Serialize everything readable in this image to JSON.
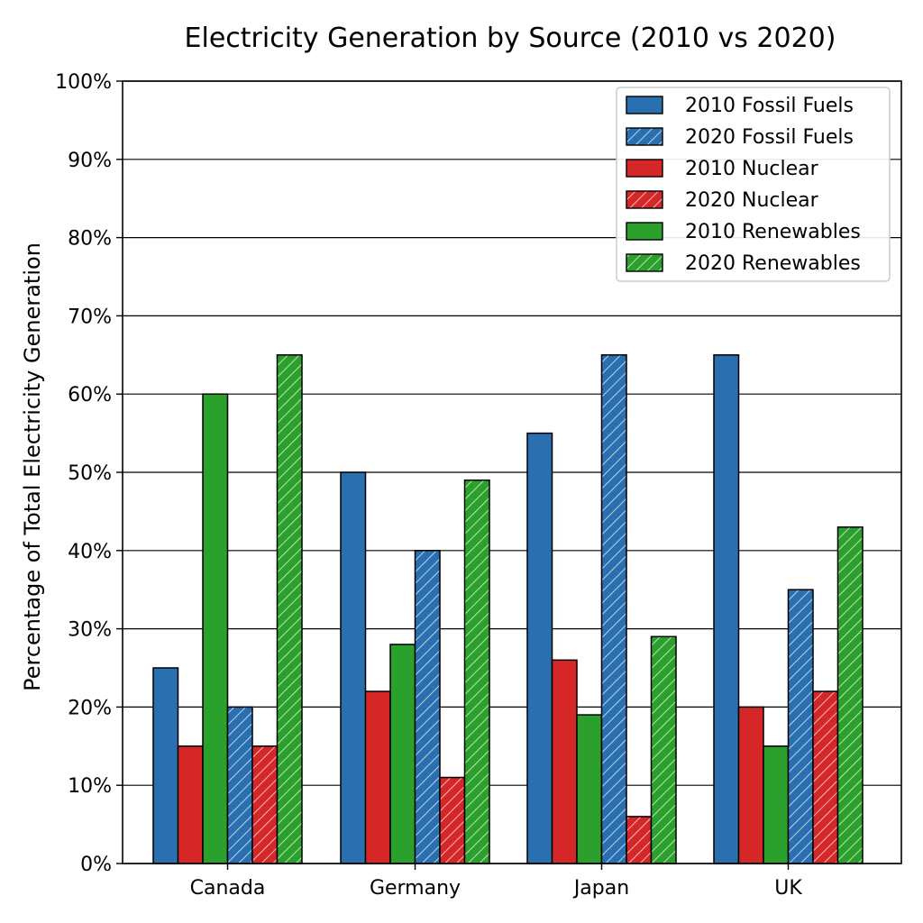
{
  "chart_data": {
    "type": "bar",
    "title": "Electricity Generation by Source (2010 vs 2020)",
    "xlabel": "",
    "ylabel": "Percentage of Total Electricity Generation",
    "categories": [
      "Canada",
      "Germany",
      "Japan",
      "UK"
    ],
    "ylim": [
      0,
      100
    ],
    "yticks": [
      "0%",
      "10%",
      "20%",
      "30%",
      "40%",
      "50%",
      "60%",
      "70%",
      "80%",
      "90%",
      "100%"
    ],
    "grid": "horizontal",
    "legend_position": "top-right",
    "bar_order": [
      "2010 Fossil Fuels",
      "2010 Nuclear",
      "2010 Renewables",
      "2020 Fossil Fuels",
      "2020 Nuclear",
      "2020 Renewables"
    ],
    "series": [
      {
        "name": "2010 Fossil Fuels",
        "color": "#2a70b0",
        "hatched": false,
        "values": [
          25,
          50,
          55,
          65
        ]
      },
      {
        "name": "2020 Fossil Fuels",
        "color": "#2a70b0",
        "hatched": true,
        "values": [
          20,
          40,
          65,
          35
        ]
      },
      {
        "name": "2010 Nuclear",
        "color": "#d62728",
        "hatched": false,
        "values": [
          15,
          22,
          26,
          20
        ]
      },
      {
        "name": "2020 Nuclear",
        "color": "#d62728",
        "hatched": true,
        "values": [
          15,
          11,
          6,
          22
        ]
      },
      {
        "name": "2010 Renewables",
        "color": "#2ca02c",
        "hatched": false,
        "values": [
          60,
          28,
          19,
          15
        ]
      },
      {
        "name": "2020 Renewables",
        "color": "#2ca02c",
        "hatched": true,
        "values": [
          65,
          49,
          29,
          43
        ]
      }
    ]
  }
}
